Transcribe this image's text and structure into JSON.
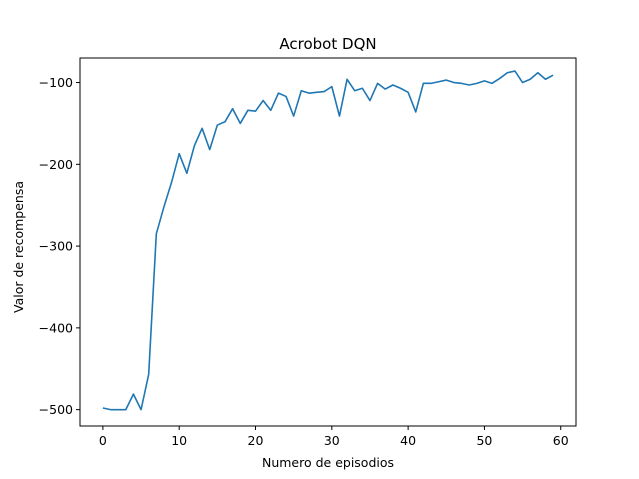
{
  "chart_data": {
    "type": "line",
    "title": "Acrobot DQN",
    "xlabel": "Numero de episodios",
    "ylabel": "Valor de recompensa",
    "xlim": [
      -3,
      62
    ],
    "ylim": [
      -520,
      -70
    ],
    "xticks": [
      0,
      10,
      20,
      30,
      40,
      50,
      60
    ],
    "yticks": [
      -500,
      -400,
      -300,
      -200,
      -100
    ],
    "ytick_labels": [
      "−500",
      "−400",
      "−300",
      "−200",
      "−100"
    ],
    "grid": false,
    "line_color": "#1f77b4",
    "series": [
      {
        "x": [
          0,
          1,
          2,
          3,
          4,
          5,
          6,
          7,
          8,
          9,
          10,
          11,
          12,
          13,
          14,
          15,
          16,
          17,
          18,
          19,
          20,
          21,
          22,
          23,
          24,
          25,
          26,
          27,
          28,
          29,
          30,
          31,
          32,
          33,
          34,
          35,
          36,
          37,
          38,
          39,
          40,
          41,
          42,
          43,
          44,
          45,
          46,
          47,
          48,
          49,
          50,
          51,
          52,
          53,
          54,
          55,
          56,
          57,
          58,
          59
        ],
        "values": [
          -498,
          -500,
          -500,
          -500,
          -481,
          -500,
          -457,
          -285,
          -252,
          -222,
          -187,
          -211,
          -177,
          -156,
          -182,
          -152,
          -148,
          -132,
          -150,
          -134,
          -135,
          -122,
          -134,
          -113,
          -117,
          -141,
          -110,
          -113,
          -112,
          -111,
          -105,
          -141,
          -96,
          -110,
          -107,
          -122,
          -101,
          -108,
          -103,
          -107,
          -112,
          -136,
          -101,
          -101,
          -99,
          -97,
          -100,
          -101,
          -103,
          -101,
          -98,
          -101,
          -95,
          -88,
          -86,
          -100,
          -96,
          -88,
          -96,
          -91
        ]
      }
    ]
  }
}
